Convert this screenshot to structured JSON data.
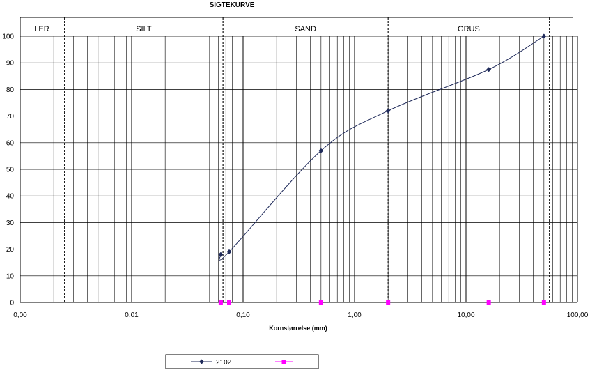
{
  "chart_data": {
    "type": "line",
    "title": "SIGTEKURVE",
    "xlabel": "Kornstørrelse (mm)",
    "ylabel": "",
    "x_scale": "log",
    "xlim": [
      0.001,
      100
    ],
    "ylim": [
      0,
      100
    ],
    "x_tick_labels": [
      "0,00",
      "0,01",
      "0,10",
      "1,00",
      "10,00",
      "100,00"
    ],
    "x_tick_values": [
      0.001,
      0.01,
      0.1,
      1,
      10,
      100
    ],
    "y_ticks": [
      0,
      10,
      20,
      30,
      40,
      50,
      60,
      70,
      80,
      90,
      100
    ],
    "grid": true,
    "zones": [
      {
        "label": "LER",
        "from": 0.001,
        "to": 0.0025
      },
      {
        "label": "SILT",
        "from": 0.0025,
        "to": 0.066
      },
      {
        "label": "SAND",
        "from": 0.066,
        "to": 2
      },
      {
        "label": "GRUS",
        "from": 2,
        "to": 56
      }
    ],
    "series": [
      {
        "name": "2102",
        "color": "#1f2a5a",
        "marker": "diamond",
        "x": [
          0.063,
          0.075,
          0.5,
          2,
          16,
          50
        ],
        "y": [
          18,
          19,
          57,
          72,
          87.5,
          100
        ]
      },
      {
        "name": "",
        "color": "#ff00ff",
        "marker": "square",
        "x": [
          0.063,
          0.075,
          0.5,
          2,
          16,
          50
        ],
        "y": [
          0,
          0,
          0,
          0,
          0,
          0
        ]
      }
    ],
    "legend_position": "bottom-center"
  }
}
